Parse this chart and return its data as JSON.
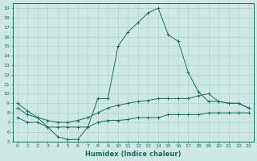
{
  "xlabel": "Humidex (Indice chaleur)",
  "xlim": [
    -0.5,
    23.5
  ],
  "ylim": [
    5,
    19.5
  ],
  "xticks": [
    0,
    1,
    2,
    3,
    4,
    5,
    6,
    7,
    8,
    9,
    10,
    11,
    12,
    13,
    14,
    15,
    16,
    17,
    18,
    19,
    20,
    21,
    22,
    23
  ],
  "yticks": [
    5,
    6,
    7,
    8,
    9,
    10,
    11,
    12,
    13,
    14,
    15,
    16,
    17,
    18,
    19
  ],
  "bg_color": "#cde8e5",
  "grid_color": "#b0d4d0",
  "line_color": "#1a6b5a",
  "series": [
    {
      "x": [
        0,
        1,
        2,
        3,
        4,
        5,
        6,
        7,
        8,
        9,
        10,
        11,
        12,
        13,
        14,
        15,
        16,
        17,
        18,
        19,
        20,
        21,
        22,
        23
      ],
      "y": [
        9.0,
        8.2,
        7.5,
        6.5,
        5.5,
        5.2,
        5.2,
        6.5,
        9.5,
        9.5,
        15.0,
        16.5,
        17.5,
        18.5,
        19.0,
        16.2,
        15.5,
        12.2,
        10.2,
        9.2,
        9.2,
        9.0,
        9.0,
        8.5
      ]
    },
    {
      "x": [
        0,
        1,
        2,
        3,
        4,
        5,
        6,
        7,
        8,
        9,
        10,
        11,
        12,
        13,
        14,
        15,
        16,
        17,
        18,
        19,
        20,
        21,
        22,
        23
      ],
      "y": [
        8.5,
        7.8,
        7.5,
        7.2,
        7.0,
        7.0,
        7.2,
        7.5,
        8.0,
        8.5,
        8.8,
        9.0,
        9.2,
        9.3,
        9.5,
        9.5,
        9.5,
        9.5,
        9.8,
        10.0,
        9.2,
        9.0,
        9.0,
        8.5
      ]
    },
    {
      "x": [
        0,
        1,
        2,
        3,
        4,
        5,
        6,
        7,
        8,
        9,
        10,
        11,
        12,
        13,
        14,
        15,
        16,
        17,
        18,
        19,
        20,
        21,
        22,
        23
      ],
      "y": [
        7.5,
        7.0,
        7.0,
        6.5,
        6.5,
        6.5,
        6.5,
        6.5,
        7.0,
        7.2,
        7.2,
        7.3,
        7.5,
        7.5,
        7.5,
        7.8,
        7.8,
        7.8,
        7.8,
        8.0,
        8.0,
        8.0,
        8.0,
        8.0
      ]
    }
  ],
  "figsize": [
    3.2,
    2.0
  ],
  "dpi": 100
}
